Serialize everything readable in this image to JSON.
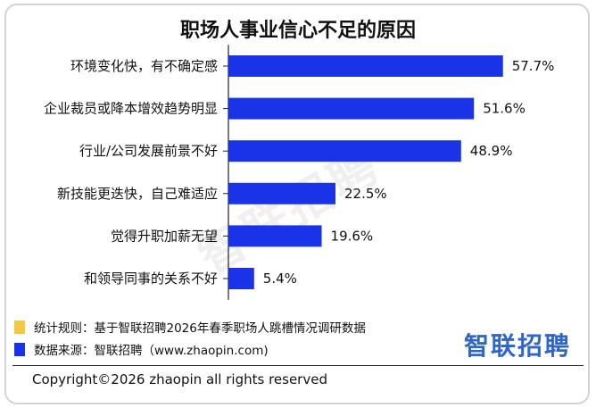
{
  "title": "职场人事业信心不足的原因",
  "watermark": "智联招聘",
  "chart_data": {
    "type": "bar",
    "orientation": "horizontal",
    "title": "职场人事业信心不足的原因",
    "categories": [
      "环境变化快，有不确定感",
      "企业裁员或降本增效趋势明显",
      "行业/公司发展前景不好",
      "新技能更迭快，自己难适应",
      "觉得升职加薪无望",
      "和领导同事的关系不好"
    ],
    "values": [
      57.7,
      51.6,
      48.9,
      22.5,
      19.6,
      5.4
    ],
    "value_labels": [
      "57.7%",
      "51.6%",
      "48.9%",
      "22.5%",
      "19.6%",
      "5.4%"
    ],
    "unit": "%",
    "xlim": [
      0,
      60
    ],
    "bar_color": "#1a33e6",
    "grid": false,
    "legend": "none"
  },
  "footer": {
    "rule_label": "统计规则：基于智联招聘2026年春季职场人跳槽情况调研数据",
    "source_label": "数据来源：智联招聘（www.zhaopin.com)",
    "rule_swatch_color": "#f5c842",
    "source_swatch_color": "#1a33e6",
    "logo_text": "智联招聘",
    "logo_color": "#2f66c8",
    "copyright": "Copyright©2026 zhaopin all rights reserved"
  }
}
